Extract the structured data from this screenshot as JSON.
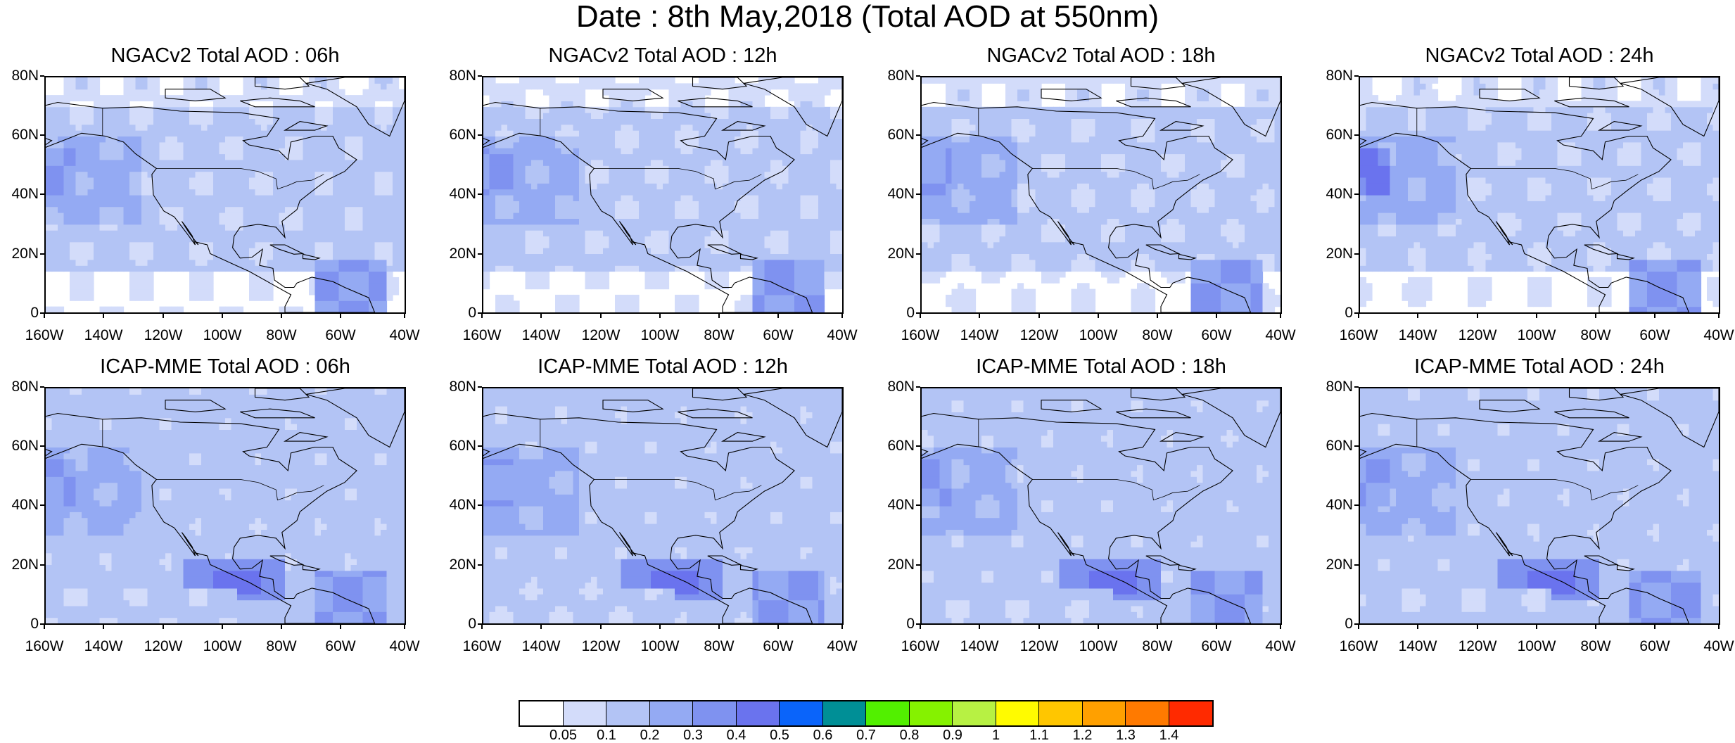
{
  "title": "Date : 8th May,2018 (Total AOD at 550nm)",
  "colors": {
    "land_outline": "#000000",
    "levels": [
      "#ffffff",
      "#d3dcfa",
      "#b3c4f5",
      "#94aaf3",
      "#7f92f0",
      "#6a73ee",
      "#0a64fa",
      "#008f96",
      "#52f000",
      "#85f200",
      "#b7f143",
      "#fffb00",
      "#ffc600",
      "#ffa000",
      "#ff7a00",
      "#ff2a00"
    ]
  },
  "colorbar": {
    "labels": [
      "0.05",
      "0.1",
      "0.2",
      "0.3",
      "0.4",
      "0.5",
      "0.6",
      "0.7",
      "0.8",
      "0.9",
      "1",
      "1.1",
      "1.2",
      "1.3",
      "1.4"
    ]
  },
  "axes": {
    "x_ticks": [
      "160W",
      "140W",
      "120W",
      "100W",
      "80W",
      "60W",
      "40W"
    ],
    "y_ticks": [
      "80N",
      "60N",
      "40N",
      "20N",
      "0"
    ],
    "lon_range": [
      -160,
      -40
    ],
    "lat_range": [
      0,
      80
    ]
  },
  "panels": [
    {
      "id": "ngac-06",
      "title": "NGACv2 Total AOD : 06h",
      "model": "ngac",
      "hour": 6
    },
    {
      "id": "ngac-12",
      "title": "NGACv2 Total AOD : 12h",
      "model": "ngac",
      "hour": 12
    },
    {
      "id": "ngac-18",
      "title": "NGACv2 Total AOD : 18h",
      "model": "ngac",
      "hour": 18
    },
    {
      "id": "ngac-24",
      "title": "NGACv2 Total AOD : 24h",
      "model": "ngac",
      "hour": 24
    },
    {
      "id": "icap-06",
      "title": "ICAP-MME Total AOD : 06h",
      "model": "icap",
      "hour": 6
    },
    {
      "id": "icap-12",
      "title": "ICAP-MME Total AOD : 12h",
      "model": "icap",
      "hour": 12
    },
    {
      "id": "icap-18",
      "title": "ICAP-MME Total AOD : 18h",
      "model": "icap",
      "hour": 18
    },
    {
      "id": "icap-24",
      "title": "ICAP-MME Total AOD : 24h",
      "model": "icap",
      "hour": 24
    }
  ]
}
